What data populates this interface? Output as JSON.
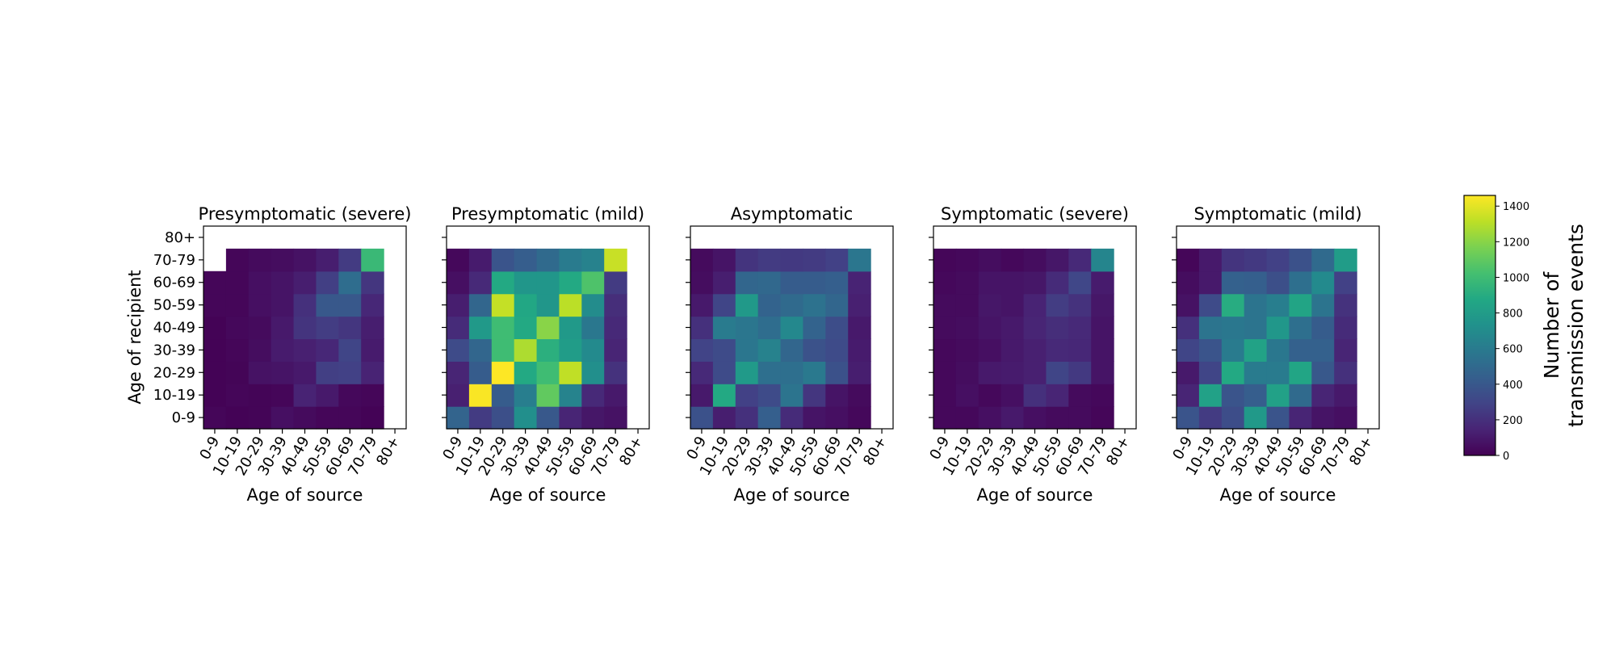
{
  "chart_data": {
    "type": "heatmap",
    "categories": [
      "0-9",
      "10-19",
      "20-29",
      "30-39",
      "40-49",
      "50-59",
      "60-69",
      "70-79",
      "80+"
    ],
    "xlabel": "Age of source",
    "ylabel": "Age of recipient",
    "colormap": "viridis",
    "value_range": [
      0,
      1460
    ],
    "colorbar": {
      "label_line1": "Number of",
      "label_line2": "transmission events",
      "ticks": [
        0,
        200,
        400,
        600,
        800,
        1000,
        1200,
        1400
      ]
    },
    "panels": [
      {
        "title": "Presymptomatic (severe)",
        "values": [
          [
            20,
            10,
            15,
            60,
            40,
            20,
            20,
            10,
            null
          ],
          [
            10,
            20,
            15,
            20,
            140,
            100,
            30,
            20,
            null
          ],
          [
            10,
            15,
            70,
            80,
            100,
            270,
            280,
            140,
            null
          ],
          [
            10,
            20,
            50,
            110,
            130,
            160,
            300,
            110,
            null
          ],
          [
            10,
            30,
            40,
            100,
            220,
            260,
            230,
            120,
            null
          ],
          [
            20,
            20,
            60,
            80,
            200,
            400,
            400,
            160,
            null
          ],
          [
            20,
            20,
            60,
            80,
            120,
            270,
            520,
            230,
            null
          ],
          [
            null,
            20,
            40,
            50,
            70,
            120,
            250,
            980,
            null
          ],
          [
            null,
            null,
            null,
            null,
            null,
            null,
            null,
            null,
            null
          ]
        ]
      },
      {
        "title": "Presymptomatic (mild)",
        "values": [
          [
            470,
            250,
            350,
            720,
            400,
            150,
            90,
            70,
            null
          ],
          [
            130,
            1450,
            420,
            620,
            1100,
            650,
            170,
            100,
            null
          ],
          [
            150,
            420,
            1460,
            880,
            1000,
            1320,
            720,
            210,
            null
          ],
          [
            330,
            480,
            1000,
            1280,
            920,
            800,
            690,
            150,
            null
          ],
          [
            180,
            780,
            1000,
            880,
            1200,
            780,
            580,
            170,
            null
          ],
          [
            120,
            480,
            1330,
            870,
            760,
            1310,
            700,
            190,
            null
          ],
          [
            60,
            170,
            880,
            760,
            760,
            880,
            1050,
            250,
            null
          ],
          [
            30,
            110,
            380,
            430,
            500,
            600,
            640,
            1340,
            null
          ],
          [
            null,
            null,
            null,
            null,
            null,
            null,
            null,
            null,
            null
          ]
        ]
      },
      {
        "title": "Asymptomatic",
        "values": [
          [
            360,
            120,
            200,
            440,
            180,
            80,
            60,
            30,
            null
          ],
          [
            100,
            880,
            280,
            330,
            560,
            230,
            80,
            40,
            null
          ],
          [
            170,
            330,
            790,
            530,
            530,
            590,
            360,
            120,
            null
          ],
          [
            290,
            330,
            570,
            640,
            480,
            370,
            330,
            110,
            null
          ],
          [
            200,
            600,
            570,
            520,
            680,
            460,
            340,
            100,
            null
          ],
          [
            100,
            300,
            780,
            460,
            500,
            550,
            480,
            130,
            null
          ],
          [
            50,
            120,
            480,
            490,
            420,
            420,
            440,
            140,
            null
          ],
          [
            40,
            80,
            220,
            250,
            240,
            250,
            280,
            570,
            null
          ],
          [
            null,
            null,
            null,
            null,
            null,
            null,
            null,
            null,
            null
          ]
        ]
      },
      {
        "title": "Symptomatic (severe)",
        "values": [
          [
            30,
            30,
            60,
            100,
            60,
            40,
            40,
            20,
            null
          ],
          [
            30,
            60,
            30,
            60,
            200,
            150,
            40,
            30,
            null
          ],
          [
            30,
            50,
            100,
            110,
            130,
            300,
            240,
            80,
            null
          ],
          [
            30,
            40,
            60,
            100,
            130,
            170,
            160,
            80,
            null
          ],
          [
            40,
            50,
            80,
            100,
            150,
            190,
            170,
            80,
            null
          ],
          [
            40,
            40,
            90,
            80,
            140,
            260,
            210,
            90,
            null
          ],
          [
            30,
            40,
            80,
            80,
            90,
            180,
            310,
            110,
            null
          ],
          [
            20,
            30,
            50,
            30,
            50,
            90,
            170,
            660,
            null
          ],
          [
            null,
            null,
            null,
            null,
            null,
            null,
            null,
            null,
            null
          ]
        ]
      },
      {
        "title": "Symptomatic (mild)",
        "values": [
          [
            380,
            250,
            340,
            780,
            380,
            150,
            80,
            60,
            null
          ],
          [
            150,
            830,
            380,
            430,
            830,
            500,
            150,
            100,
            null
          ],
          [
            100,
            300,
            880,
            600,
            600,
            860,
            400,
            200,
            null
          ],
          [
            300,
            380,
            600,
            840,
            580,
            450,
            450,
            150,
            null
          ],
          [
            200,
            560,
            580,
            560,
            770,
            530,
            420,
            180,
            null
          ],
          [
            70,
            330,
            900,
            560,
            620,
            850,
            560,
            210,
            null
          ],
          [
            50,
            100,
            450,
            440,
            350,
            530,
            690,
            280,
            null
          ],
          [
            20,
            100,
            220,
            240,
            280,
            360,
            500,
            800,
            null
          ],
          [
            null,
            null,
            null,
            null,
            null,
            null,
            null,
            null,
            null
          ]
        ]
      }
    ]
  }
}
